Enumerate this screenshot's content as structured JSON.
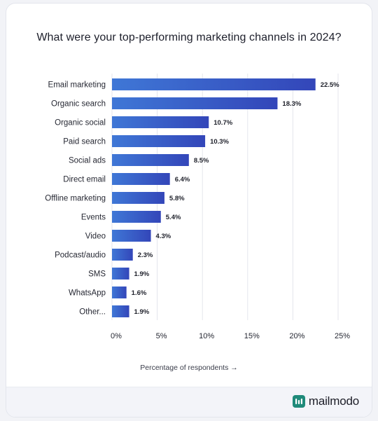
{
  "chart_data": {
    "type": "bar",
    "orientation": "horizontal",
    "title": "What were your top-performing marketing channels in 2024?",
    "xlabel": "Percentage of respondents →",
    "categories": [
      "Email marketing",
      "Organic search",
      "Organic social",
      "Paid search",
      "Social ads",
      "Direct email",
      "Offline marketing",
      "Events",
      "Video",
      "Podcast/audio",
      "SMS",
      "WhatsApp",
      "Other..."
    ],
    "values": [
      22.5,
      18.3,
      10.7,
      10.3,
      8.5,
      6.4,
      5.8,
      5.4,
      4.3,
      2.3,
      1.9,
      1.6,
      1.9
    ],
    "value_labels": [
      "22.5%",
      "18.3%",
      "10.7%",
      "10.3%",
      "8.5%",
      "6.4%",
      "5.8%",
      "5.4%",
      "4.3%",
      "2.3%",
      "1.9%",
      "1.6%",
      "1.9%"
    ],
    "xlim": [
      0,
      25
    ],
    "xticks": [
      0,
      5,
      10,
      15,
      20,
      25
    ],
    "xtick_labels": [
      "0%",
      "5%",
      "10%",
      "15%",
      "20%",
      "25%"
    ],
    "grid": true,
    "bar_color_start": "#3f77d6",
    "bar_color_end": "#3346b9"
  },
  "brand": {
    "name": "mailmodo",
    "logo_icon": "mailmodo-logo-icon",
    "logo_color": "#1f8a7a"
  }
}
